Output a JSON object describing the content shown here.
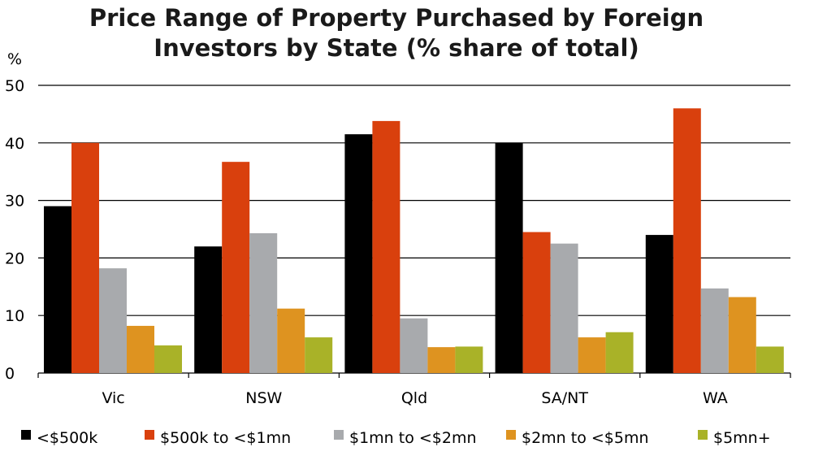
{
  "chart_data": {
    "type": "bar",
    "title_lines": [
      "Price Range of Property Purchased by Foreign",
      "Investors by State (% share of total)"
    ],
    "ylabel": "%",
    "ylim": [
      0,
      50
    ],
    "yticks": [
      "0",
      "10",
      "20",
      "30",
      "40",
      "50"
    ],
    "grid": true,
    "legend_position": "bottom",
    "categories": [
      "Vic",
      "NSW",
      "Qld",
      "SA/NT",
      "WA"
    ],
    "series": [
      {
        "name": "<$500k",
        "color": "#000000",
        "values": [
          29,
          22,
          41.5,
          40,
          24
        ]
      },
      {
        "name": "$500k to <$1mn",
        "color": "#d9400d",
        "values": [
          40,
          36.7,
          43.8,
          24.5,
          46
        ]
      },
      {
        "name": "$1mn to <$2mn",
        "color": "#a8aaad",
        "values": [
          18.2,
          24.3,
          9.5,
          22.5,
          14.7
        ]
      },
      {
        "name": "$2mn to <$5mn",
        "color": "#de9320",
        "values": [
          8.2,
          11.2,
          4.5,
          6.2,
          13.2
        ]
      },
      {
        "name": "$5mn+",
        "color": "#a9b228",
        "values": [
          4.8,
          6.2,
          4.6,
          7.1,
          4.6
        ]
      }
    ]
  }
}
